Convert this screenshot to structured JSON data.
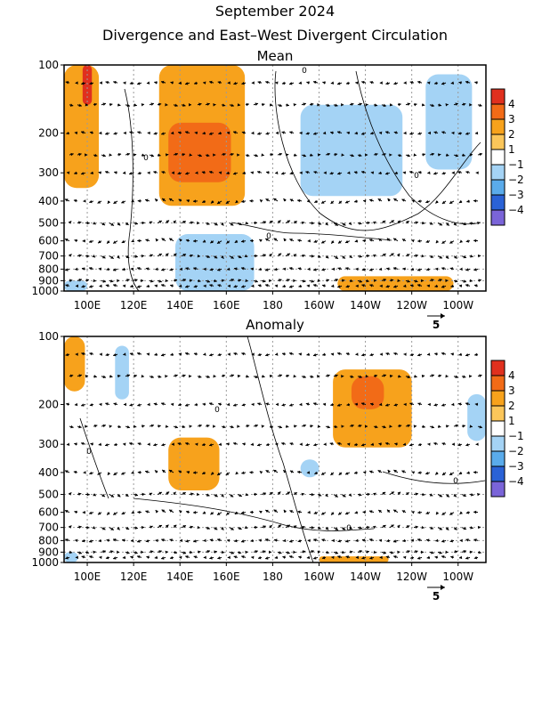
{
  "header": {
    "title": "September 2024",
    "subtitle": "Divergence and East–West Divergent Circulation"
  },
  "x_tick_labels": [
    "100E",
    "120E",
    "140E",
    "160E",
    "180",
    "160W",
    "140W",
    "120W",
    "100W"
  ],
  "y_tick_labels": [
    "100",
    "200",
    "300",
    "400",
    "500",
    "600",
    "700",
    "800",
    "900",
    "1000"
  ],
  "colorbar_labels": [
    "4",
    "3",
    "2",
    "1",
    "−1",
    "−2",
    "−3",
    "−4"
  ],
  "colors": {
    "pos4": "#e0301e",
    "pos3": "#f26b17",
    "pos2": "#f7a21c",
    "pos1": "#fbc65a",
    "neg1": "#a4d3f5",
    "neg2": "#5aabeb",
    "neg3": "#2a62d6",
    "neg4": "#7a64d8",
    "white": "#ffffff"
  },
  "vector_reference": {
    "label": "5",
    "magnitude": 5
  },
  "chart_data": [
    {
      "type": "heatmap",
      "title": "Mean",
      "x_axis": {
        "ticks": [
          "100E",
          "120E",
          "140E",
          "160E",
          "180",
          "160W",
          "140W",
          "120W",
          "100W"
        ],
        "range_deg_east": [
          90,
          272
        ]
      },
      "y_axis": {
        "ticks": [
          "100",
          "200",
          "300",
          "400",
          "500",
          "600",
          "700",
          "800",
          "900",
          "1000"
        ],
        "scale": "log-pressure",
        "range_hPa": [
          100,
          1000
        ]
      },
      "color_levels": [
        -4,
        -3,
        -2,
        -1,
        1,
        2,
        3,
        4
      ],
      "contour_label": "0",
      "regions": [
        {
          "lon": [
            90,
            105
          ],
          "p": [
            100,
            350
          ],
          "value": 2
        },
        {
          "lon": [
            98,
            102
          ],
          "p": [
            100,
            150
          ],
          "value": 4
        },
        {
          "lon": [
            131,
            168
          ],
          "p": [
            100,
            420
          ],
          "value": 2
        },
        {
          "lon": [
            135,
            162
          ],
          "p": [
            180,
            330
          ],
          "value": 3
        },
        {
          "lon": [
            246,
            266
          ],
          "p": [
            110,
            290
          ],
          "value": -1
        },
        {
          "lon": [
            192,
            236
          ],
          "p": [
            150,
            380
          ],
          "value": -1
        },
        {
          "lon": [
            138,
            172
          ],
          "p": [
            560,
            1000
          ],
          "value": -1
        },
        {
          "lon": [
            90,
            100
          ],
          "p": [
            900,
            1000
          ],
          "value": -1
        },
        {
          "lon": [
            208,
            258
          ],
          "p": [
            860,
            1000
          ],
          "value": 2
        }
      ]
    },
    {
      "type": "heatmap",
      "title": "Anomaly",
      "x_axis": {
        "ticks": [
          "100E",
          "120E",
          "140E",
          "160E",
          "180",
          "160W",
          "140W",
          "120W",
          "100W"
        ],
        "range_deg_east": [
          90,
          272
        ]
      },
      "y_axis": {
        "ticks": [
          "100",
          "200",
          "300",
          "400",
          "500",
          "600",
          "700",
          "800",
          "900",
          "1000"
        ],
        "scale": "log-pressure",
        "range_hPa": [
          100,
          1000
        ]
      },
      "color_levels": [
        -4,
        -3,
        -2,
        -1,
        1,
        2,
        3,
        4
      ],
      "contour_label": "0",
      "regions": [
        {
          "lon": [
            90,
            99
          ],
          "p": [
            100,
            175
          ],
          "value": 2
        },
        {
          "lon": [
            135,
            157
          ],
          "p": [
            280,
            480
          ],
          "value": 2
        },
        {
          "lon": [
            206,
            240
          ],
          "p": [
            140,
            310
          ],
          "value": 2
        },
        {
          "lon": [
            214,
            228
          ],
          "p": [
            150,
            210
          ],
          "value": 3
        },
        {
          "lon": [
            112,
            118
          ],
          "p": [
            110,
            190
          ],
          "value": -1
        },
        {
          "lon": [
            192,
            200
          ],
          "p": [
            350,
            420
          ],
          "value": -1
        },
        {
          "lon": [
            264,
            272
          ],
          "p": [
            180,
            290
          ],
          "value": -1
        },
        {
          "lon": [
            90,
            96
          ],
          "p": [
            900,
            1000
          ],
          "value": -1
        },
        {
          "lon": [
            200,
            230
          ],
          "p": [
            940,
            1000
          ],
          "value": 2
        }
      ]
    }
  ]
}
